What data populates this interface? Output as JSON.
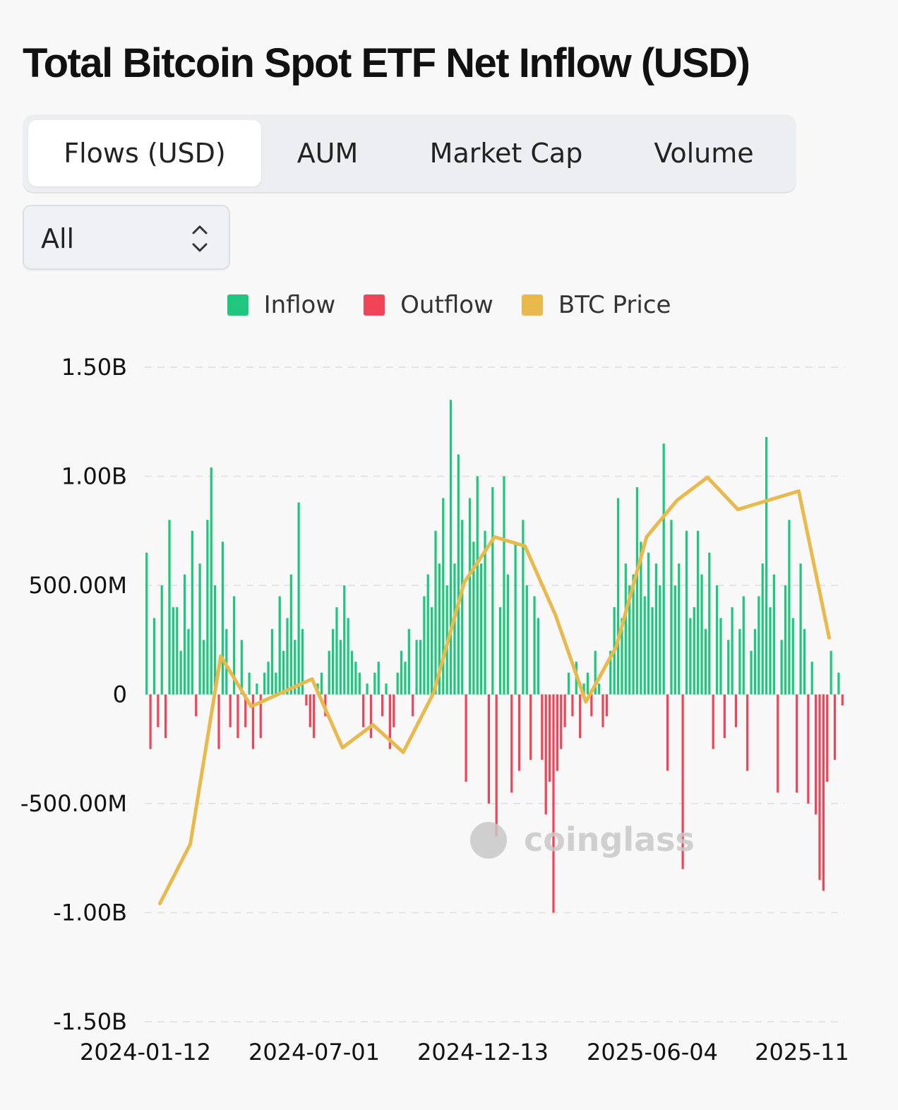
{
  "title": "Total Bitcoin Spot ETF Net Inflow (USD)",
  "tabs": [
    {
      "label": "Flows (USD)",
      "active": true
    },
    {
      "label": "AUM",
      "active": false
    },
    {
      "label": "Market Cap",
      "active": false
    },
    {
      "label": "Volume",
      "active": false
    }
  ],
  "filter": {
    "selected": "All"
  },
  "watermark": "coinglass",
  "colors": {
    "inflow": "#1ec77d",
    "outflow": "#f04458",
    "btc_price": "#e9b94c",
    "text": "#111111",
    "grid": "#e2e4e8"
  },
  "chart_data": {
    "type": "bar",
    "series": [
      {
        "name": "Inflow",
        "color": "#1ec77d"
      },
      {
        "name": "Outflow",
        "color": "#f04458"
      },
      {
        "name": "BTC Price",
        "color": "#e9b94c",
        "type": "line"
      }
    ],
    "y_ticks": [
      "1.50B",
      "1.00B",
      "500.00M",
      "0",
      "-500.00M",
      "-1.00B",
      "-1.50B"
    ],
    "ylim": [
      -1.5,
      1.5
    ],
    "y_unit": "B",
    "x_ticks": [
      "2024-01-12",
      "2024-07-01",
      "2024-12-13",
      "2025-06-04",
      "2025-11"
    ],
    "grid": true,
    "legend_position": "top-center",
    "flows": [
      {
        "month": "2024-01",
        "values": [
          0.65,
          -0.25,
          0.35,
          -0.15,
          0.5,
          -0.2,
          0.8,
          0.4
        ]
      },
      {
        "month": "2024-02",
        "values": [
          0.4,
          0.2,
          0.55,
          0.3,
          0.75,
          -0.1,
          0.6,
          0.25
        ]
      },
      {
        "month": "2024-03",
        "values": [
          0.8,
          1.04,
          0.5,
          -0.25,
          0.7,
          0.3,
          -0.15,
          0.45
        ]
      },
      {
        "month": "2024-04",
        "values": [
          -0.2,
          0.25,
          -0.15,
          0.1,
          -0.25,
          0.05,
          -0.2,
          0.1
        ]
      },
      {
        "month": "2024-05",
        "values": [
          0.15,
          0.3,
          0.1,
          0.45,
          0.2,
          0.35,
          0.55,
          0.25
        ]
      },
      {
        "month": "2024-06",
        "values": [
          0.88,
          0.3,
          -0.05,
          -0.15,
          -0.2,
          0.05,
          0.1,
          -0.1
        ]
      },
      {
        "month": "2024-07",
        "values": [
          0.2,
          0.3,
          0.4,
          0.25,
          0.5,
          0.35,
          0.2,
          0.15
        ]
      },
      {
        "month": "2024-08",
        "values": [
          0.1,
          -0.15,
          0.05,
          -0.2,
          0.1,
          0.15,
          -0.1,
          0.05
        ]
      },
      {
        "month": "2024-09",
        "values": [
          -0.25,
          -0.15,
          0.1,
          0.2,
          0.15,
          0.3,
          -0.1,
          0.25
        ]
      },
      {
        "month": "2024-10",
        "values": [
          0.25,
          0.45,
          0.55,
          0.4,
          0.75,
          0.6,
          0.9,
          0.5
        ]
      },
      {
        "month": "2024-11",
        "values": [
          1.35,
          0.6,
          1.1,
          0.8,
          -0.4,
          0.9,
          0.7,
          1.0
        ]
      },
      {
        "month": "2024-12",
        "values": [
          0.6,
          0.75,
          -0.5,
          0.95,
          -0.65,
          0.4,
          1.0,
          0.55
        ]
      },
      {
        "month": "2025-01",
        "values": [
          -0.45,
          0.7,
          -0.35,
          0.8,
          0.5,
          -0.3,
          0.45,
          0.35
        ]
      },
      {
        "month": "2025-02",
        "values": [
          -0.3,
          -0.55,
          -0.4,
          -1.0,
          -0.35,
          -0.25,
          -0.15,
          0.1
        ]
      },
      {
        "month": "2025-03",
        "values": [
          -0.1,
          0.15,
          -0.2,
          0.05,
          0.1,
          -0.1,
          0.2,
          0.05
        ]
      },
      {
        "month": "2025-04",
        "values": [
          -0.15,
          -0.1,
          0.2,
          0.4,
          0.9,
          0.35,
          0.6,
          0.5
        ]
      },
      {
        "month": "2025-05",
        "values": [
          0.55,
          0.95,
          0.7,
          0.45,
          0.65,
          0.4,
          0.6,
          0.5
        ]
      },
      {
        "month": "2025-06",
        "values": [
          1.15,
          -0.35,
          0.8,
          0.5,
          0.6,
          -0.8,
          0.75,
          0.35
        ]
      },
      {
        "month": "2025-07",
        "values": [
          0.4,
          0.75,
          0.55,
          0.3,
          0.65,
          -0.25,
          0.5,
          0.35
        ]
      },
      {
        "month": "2025-08",
        "values": [
          -0.2,
          0.25,
          0.4,
          -0.15,
          0.3,
          0.45,
          -0.35,
          0.2
        ]
      },
      {
        "month": "2025-09",
        "values": [
          0.3,
          0.45,
          0.6,
          1.18,
          0.4,
          0.55,
          -0.45,
          0.25
        ]
      },
      {
        "month": "2025-10",
        "values": [
          0.5,
          0.8,
          0.35,
          -0.45,
          0.6,
          0.3,
          -0.5,
          0.15
        ]
      },
      {
        "month": "2025-11",
        "values": [
          -0.55,
          -0.85,
          -0.9,
          -0.4,
          0.2,
          -0.3,
          0.1,
          -0.05
        ]
      }
    ],
    "btc_price_normalized": [
      {
        "month": "2024-01",
        "value": 0.02
      },
      {
        "month": "2024-02",
        "value": 0.15
      },
      {
        "month": "2024-03",
        "value": 0.56
      },
      {
        "month": "2024-04",
        "value": 0.45
      },
      {
        "month": "2024-05",
        "value": 0.48
      },
      {
        "month": "2024-06",
        "value": 0.51
      },
      {
        "month": "2024-07",
        "value": 0.36
      },
      {
        "month": "2024-08",
        "value": 0.41
      },
      {
        "month": "2024-09",
        "value": 0.35
      },
      {
        "month": "2024-10",
        "value": 0.48
      },
      {
        "month": "2024-11",
        "value": 0.72
      },
      {
        "month": "2024-12",
        "value": 0.82
      },
      {
        "month": "2025-01",
        "value": 0.8
      },
      {
        "month": "2025-02",
        "value": 0.65
      },
      {
        "month": "2025-03",
        "value": 0.46
      },
      {
        "month": "2025-04",
        "value": 0.58
      },
      {
        "month": "2025-05",
        "value": 0.82
      },
      {
        "month": "2025-06",
        "value": 0.9
      },
      {
        "month": "2025-07",
        "value": 0.95
      },
      {
        "month": "2025-08",
        "value": 0.88
      },
      {
        "month": "2025-09",
        "value": 0.9
      },
      {
        "month": "2025-10",
        "value": 0.92
      },
      {
        "month": "2025-11",
        "value": 0.6
      }
    ]
  }
}
